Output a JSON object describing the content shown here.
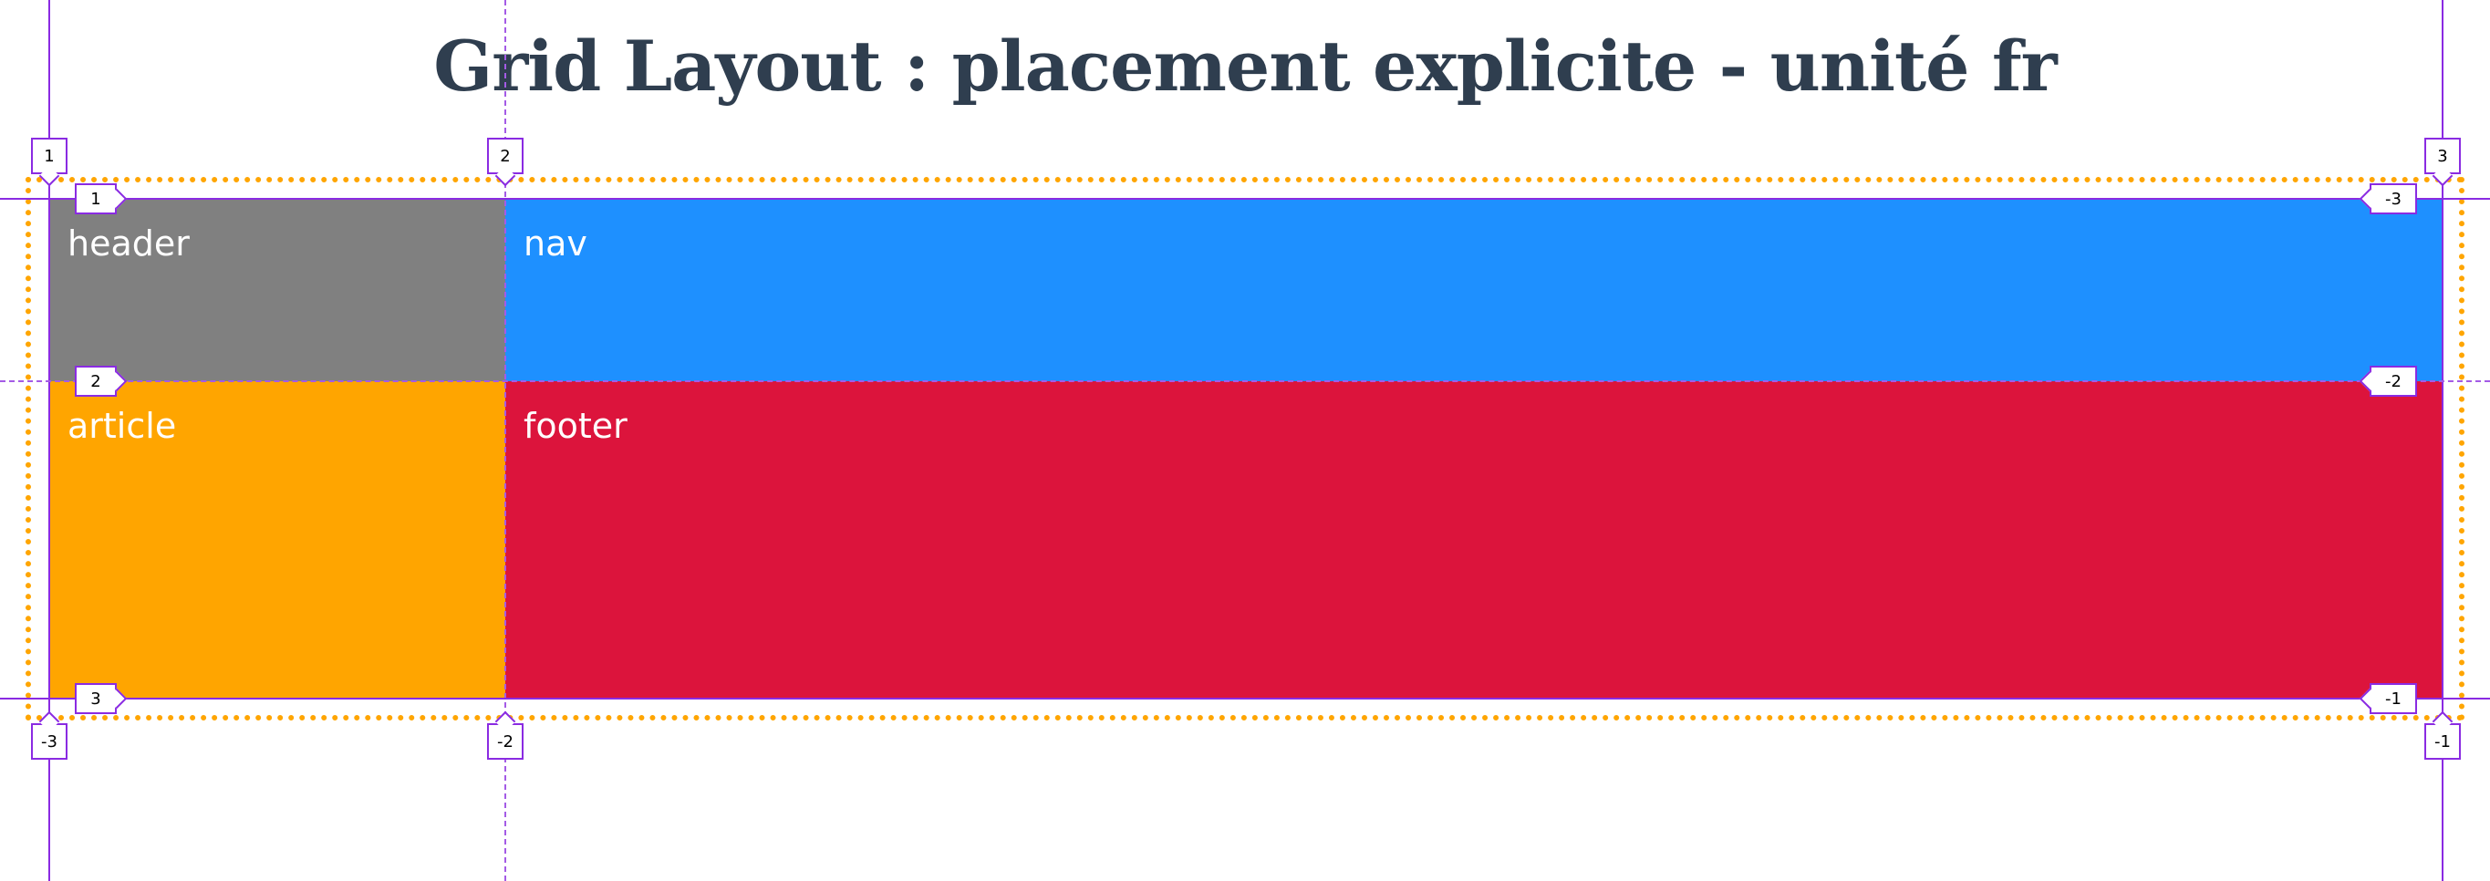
{
  "page": {
    "title": "Grid Layout : placement explicite - unité fr"
  },
  "grid": {
    "cells": {
      "header": {
        "label": "header",
        "color": "#808080"
      },
      "nav": {
        "label": "nav",
        "color": "#1e90ff"
      },
      "article": {
        "label": "article",
        "color": "#ffa500"
      },
      "footer": {
        "label": "footer",
        "color": "#dc143c"
      }
    },
    "line_numbers": {
      "column_top": [
        "1",
        "2",
        "3"
      ],
      "column_bottom": [
        "-3",
        "-2",
        "-1"
      ],
      "row_left": [
        "1",
        "2",
        "3"
      ],
      "row_right": [
        "-3",
        "-2",
        "-1"
      ]
    },
    "colors": {
      "grid_line": "#8a2be2",
      "container_outline": "#ffa500"
    }
  }
}
